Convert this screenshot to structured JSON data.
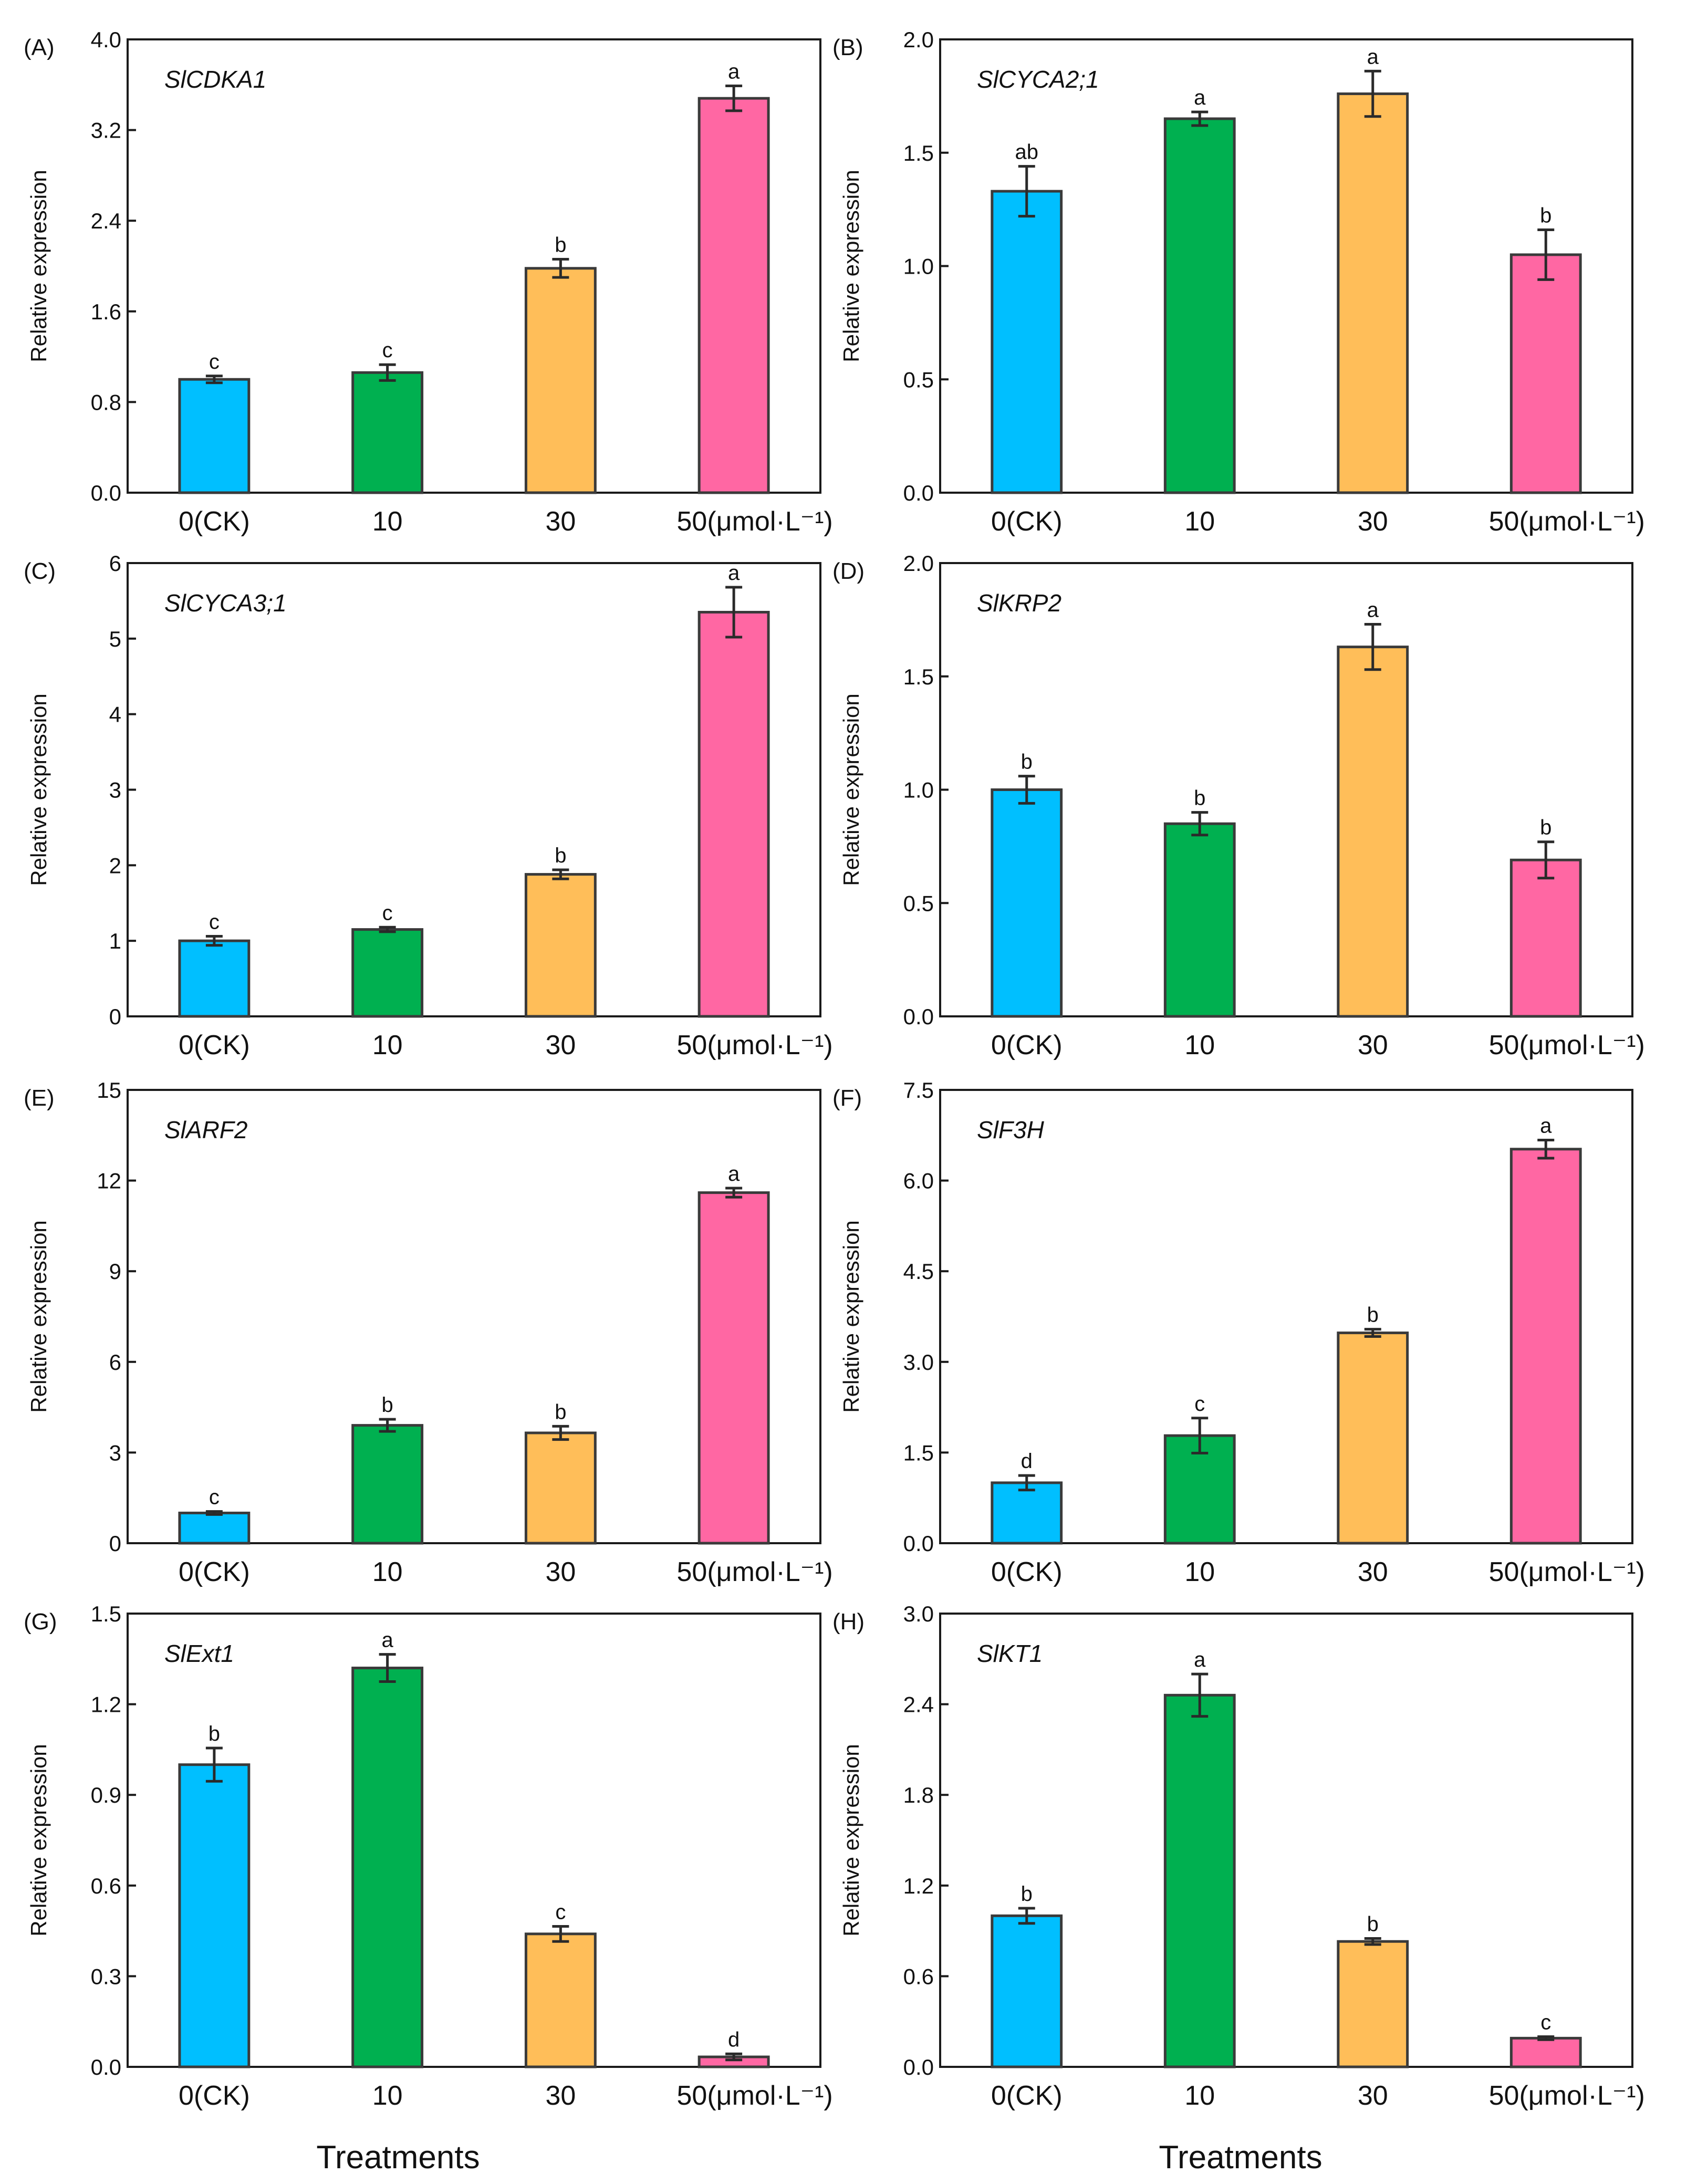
{
  "colors": {
    "bar_fills": [
      "#00BFFF",
      "#00B050",
      "#FFBE59",
      "#FF67A3"
    ],
    "frame": "#1a1a1a"
  },
  "x_title": "Treatments",
  "chart_data": [
    {
      "panel": "(A)",
      "type": "bar",
      "title": "SlCDKA1",
      "categories": [
        "0(CK)",
        "10",
        "30",
        "50(μmol·L⁻¹)"
      ],
      "values": [
        1.0,
        1.06,
        1.98,
        3.48
      ],
      "errors": [
        0.03,
        0.07,
        0.08,
        0.11
      ],
      "letters": [
        "c",
        "c",
        "b",
        "a"
      ],
      "ylabel": "Relative expression",
      "ylim": [
        0,
        4.0
      ],
      "yticks": [
        "0.0",
        "0.8",
        "1.6",
        "2.4",
        "3.2",
        "4.0"
      ]
    },
    {
      "panel": "(B)",
      "type": "bar",
      "title": "SlCYCA2;1",
      "categories": [
        "0(CK)",
        "10",
        "30",
        "50(μmol·L⁻¹)"
      ],
      "values": [
        1.33,
        1.65,
        1.76,
        1.05
      ],
      "errors": [
        0.11,
        0.03,
        0.1,
        0.11
      ],
      "letters": [
        "ab",
        "a",
        "a",
        "b"
      ],
      "ylabel": "Relative expression",
      "ylim": [
        0,
        2.0
      ],
      "yticks": [
        "0.0",
        "0.5",
        "1.0",
        "1.5",
        "2.0"
      ]
    },
    {
      "panel": "(C)",
      "type": "bar",
      "title": "SlCYCA3;1",
      "categories": [
        "0(CK)",
        "10",
        "30",
        "50(μmol·L⁻¹)"
      ],
      "values": [
        1.0,
        1.15,
        1.88,
        5.35
      ],
      "errors": [
        0.06,
        0.03,
        0.06,
        0.33
      ],
      "letters": [
        "c",
        "c",
        "b",
        "a"
      ],
      "ylabel": "Relative expression",
      "ylim": [
        0,
        6
      ],
      "yticks": [
        "0",
        "1",
        "2",
        "3",
        "4",
        "5",
        "6"
      ]
    },
    {
      "panel": "(D)",
      "type": "bar",
      "title": "SlKRP2",
      "categories": [
        "0(CK)",
        "10",
        "30",
        "50(μmol·L⁻¹)"
      ],
      "values": [
        1.0,
        0.85,
        1.63,
        0.69
      ],
      "errors": [
        0.06,
        0.05,
        0.1,
        0.08
      ],
      "letters": [
        "b",
        "b",
        "a",
        "b"
      ],
      "ylabel": "Relative expression",
      "ylim": [
        0,
        2.0
      ],
      "yticks": [
        "0.0",
        "0.5",
        "1.0",
        "1.5",
        "2.0"
      ]
    },
    {
      "panel": "(E)",
      "type": "bar",
      "title": "SlARF2",
      "categories": [
        "0(CK)",
        "10",
        "30",
        "50(μmol·L⁻¹)"
      ],
      "values": [
        1.0,
        3.9,
        3.65,
        11.6
      ],
      "errors": [
        0.05,
        0.2,
        0.22,
        0.15
      ],
      "letters": [
        "c",
        "b",
        "b",
        "a"
      ],
      "ylabel": "Relative expression",
      "ylim": [
        0,
        15
      ],
      "yticks": [
        "0",
        "3",
        "6",
        "9",
        "12",
        "15"
      ]
    },
    {
      "panel": "(F)",
      "type": "bar",
      "title": "SlF3H",
      "categories": [
        "0(CK)",
        "10",
        "30",
        "50(μmol·L⁻¹)"
      ],
      "values": [
        1.0,
        1.78,
        3.48,
        6.52
      ],
      "errors": [
        0.12,
        0.29,
        0.06,
        0.15
      ],
      "letters": [
        "d",
        "c",
        "b",
        "a"
      ],
      "ylabel": "Relative expression",
      "ylim": [
        0,
        7.5
      ],
      "yticks": [
        "0.0",
        "1.5",
        "3.0",
        "4.5",
        "6.0",
        "7.5"
      ]
    },
    {
      "panel": "(G)",
      "type": "bar",
      "title": "SlExt1",
      "categories": [
        "0(CK)",
        "10",
        "30",
        "50(μmol·L⁻¹)"
      ],
      "values": [
        1.0,
        1.32,
        0.44,
        0.033
      ],
      "errors": [
        0.055,
        0.045,
        0.025,
        0.01
      ],
      "letters": [
        "b",
        "a",
        "c",
        "d"
      ],
      "ylabel": "Relative expression",
      "ylim": [
        0,
        1.5
      ],
      "yticks": [
        "0.0",
        "0.3",
        "0.6",
        "0.9",
        "1.2",
        "1.5"
      ]
    },
    {
      "panel": "(H)",
      "type": "bar",
      "title": "SlKT1",
      "categories": [
        "0(CK)",
        "10",
        "30",
        "50(μmol·L⁻¹)"
      ],
      "values": [
        1.0,
        2.46,
        0.83,
        0.19
      ],
      "errors": [
        0.05,
        0.14,
        0.02,
        0.01
      ],
      "letters": [
        "b",
        "a",
        "b",
        "c"
      ],
      "ylabel": "Relative expression",
      "ylim": [
        0,
        3.0
      ],
      "yticks": [
        "0.0",
        "0.6",
        "1.2",
        "1.8",
        "2.4",
        "3.0"
      ]
    }
  ]
}
